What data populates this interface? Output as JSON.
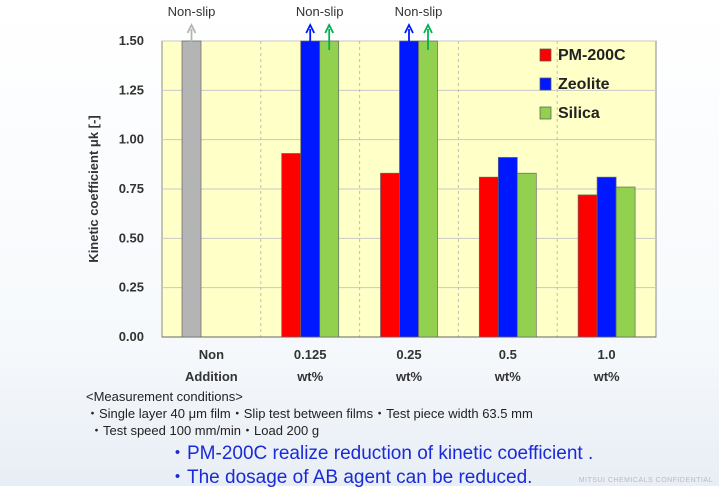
{
  "chart_data": {
    "type": "bar",
    "categories": [
      [
        "Non",
        "Addition"
      ],
      [
        "0.125",
        "wt%"
      ],
      [
        "0.25",
        "wt%"
      ],
      [
        "0.5",
        "wt%"
      ],
      [
        "1.0",
        "wt%"
      ]
    ],
    "series": [
      {
        "name": "",
        "color": "#b4b4b4",
        "values": [
          1.5,
          null,
          null,
          null,
          null
        ],
        "legend": false
      },
      {
        "name": "PM-200C",
        "color": "#ff0000",
        "values": [
          null,
          0.93,
          0.83,
          0.81,
          0.72
        ]
      },
      {
        "name": "Zeolite",
        "color": "#0018ff",
        "values": [
          null,
          1.5,
          1.5,
          0.91,
          0.81
        ]
      },
      {
        "name": "Silica",
        "color": "#92d050",
        "values": [
          null,
          1.5,
          1.5,
          0.83,
          0.76
        ]
      }
    ],
    "ylabel": "Kinetic  coefficient  μk  [-]",
    "xlabel": "",
    "ylim": [
      0,
      1.5
    ],
    "yticks": [
      "0.00",
      "0.25",
      "0.50",
      "0.75",
      "1.00",
      "1.25",
      "1.50"
    ],
    "grid": true,
    "legend_position": "top-right",
    "plot_background": "#ffffc8",
    "annotations": [
      {
        "text": "Non-slip",
        "category_index": 0,
        "arrows": [
          {
            "series_index": 0,
            "color": "#b4b4b4"
          }
        ]
      },
      {
        "text": "Non-slip",
        "category_index": 1,
        "arrows": [
          {
            "series_index": 2,
            "color": "#0018ff"
          },
          {
            "series_index": 3,
            "color": "#00b050"
          }
        ]
      },
      {
        "text": "Non-slip",
        "category_index": 2,
        "arrows": [
          {
            "series_index": 2,
            "color": "#0018ff"
          },
          {
            "series_index": 3,
            "color": "#00b050"
          }
        ]
      }
    ]
  },
  "conditions": {
    "heading": "<Measurement conditions>",
    "line1": "・Single layer 40 μm film・Slip test between films・Test piece width 63.5 mm",
    "line2": "・Test speed 100 mm/min・Load 200 g"
  },
  "highlights": {
    "line1": "・PM-200C realize reduction of kinetic coefficient .",
    "line2": "・The dosage of AB agent can be reduced."
  },
  "footer": {
    "confidential": "MITSUI CHEMICALS CONFIDENTIAL"
  }
}
